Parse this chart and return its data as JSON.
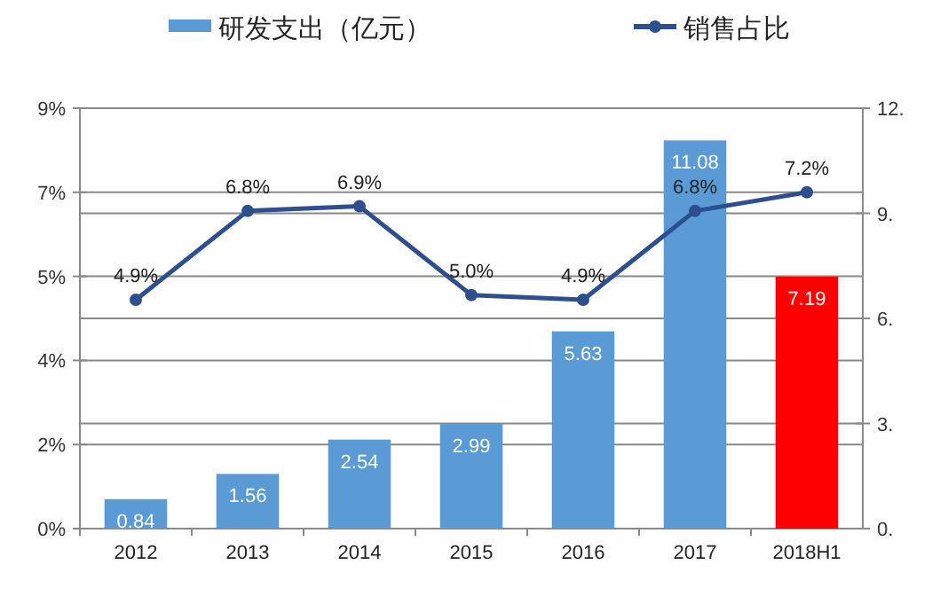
{
  "chart_data": {
    "type": "bar",
    "categories": [
      "2012",
      "2013",
      "2014",
      "2015",
      "2016",
      "2017",
      "2018H1"
    ],
    "series": [
      {
        "name": "研发支出（亿元）",
        "axis": "y2",
        "color": "#5b9bd5",
        "colors": [
          "#5b9bd5",
          "#5b9bd5",
          "#5b9bd5",
          "#5b9bd5",
          "#5b9bd5",
          "#5b9bd5",
          "#ff0000"
        ],
        "values": [
          0.84,
          1.56,
          2.54,
          2.99,
          5.63,
          11.08,
          7.19
        ],
        "value_labels": [
          "0.84",
          "1.56",
          "2.54",
          "2.99",
          "5.63",
          "11.08",
          "7.19"
        ]
      },
      {
        "name": "销售占比",
        "type": "line",
        "color": "#2e4f8e",
        "marker": "circle",
        "values": [
          4.9,
          6.8,
          6.9,
          5.0,
          4.9,
          6.8,
          7.2
        ],
        "value_labels": [
          "4.9%",
          "6.8%",
          "6.9%",
          "5.0%",
          "4.9%",
          "6.8%",
          "7.2%"
        ]
      }
    ],
    "ylim": [
      0,
      9
    ],
    "yticks": [
      {
        "value": 0,
        "label": "0%"
      },
      {
        "value": 1.8,
        "label": "2%"
      },
      {
        "value": 3.6,
        "label": "4%"
      },
      {
        "value": 5.4,
        "label": "5%"
      },
      {
        "value": 7.2,
        "label": "7%"
      },
      {
        "value": 9,
        "label": "9%"
      }
    ],
    "y2lim": [
      0,
      12
    ],
    "y2ticks": [
      {
        "value": 0,
        "label": "0."
      },
      {
        "value": 3,
        "label": "3."
      },
      {
        "value": 6,
        "label": "6."
      },
      {
        "value": 9,
        "label": "9."
      },
      {
        "value": 12,
        "label": "12."
      }
    ],
    "grid": true,
    "legend": "top"
  }
}
